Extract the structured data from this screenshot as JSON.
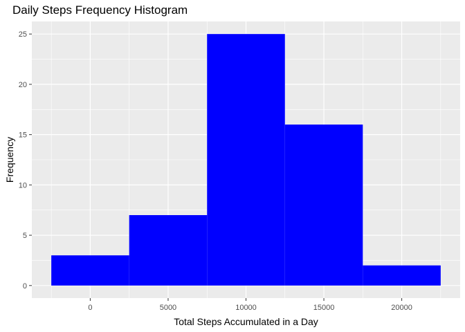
{
  "chart_data": {
    "type": "histogram",
    "title": "Daily Steps Frequency Histogram",
    "xlabel": "Total Steps Accumulated in a Day",
    "ylabel": "Frequency",
    "bins": [
      {
        "x0": -2500,
        "x1": 2500,
        "count": 3
      },
      {
        "x0": 2500,
        "x1": 7500,
        "count": 7
      },
      {
        "x0": 7500,
        "x1": 12500,
        "count": 25
      },
      {
        "x0": 12500,
        "x1": 17500,
        "count": 16
      },
      {
        "x0": 17500,
        "x1": 22500,
        "count": 2
      }
    ],
    "xlim": [
      -3750,
      23750
    ],
    "ylim": [
      -1.25,
      26.25
    ],
    "x_ticks": [
      0,
      5000,
      10000,
      15000,
      20000
    ],
    "y_ticks": [
      0,
      5,
      10,
      15,
      20,
      25
    ],
    "x_minor": [
      -2500,
      2500,
      7500,
      12500,
      17500,
      22500
    ],
    "y_minor": [
      2.5,
      7.5,
      12.5,
      17.5,
      22.5
    ],
    "bar_color": "#0000ff",
    "panel_color": "#ebebeb",
    "grid": true,
    "legend": "none"
  }
}
